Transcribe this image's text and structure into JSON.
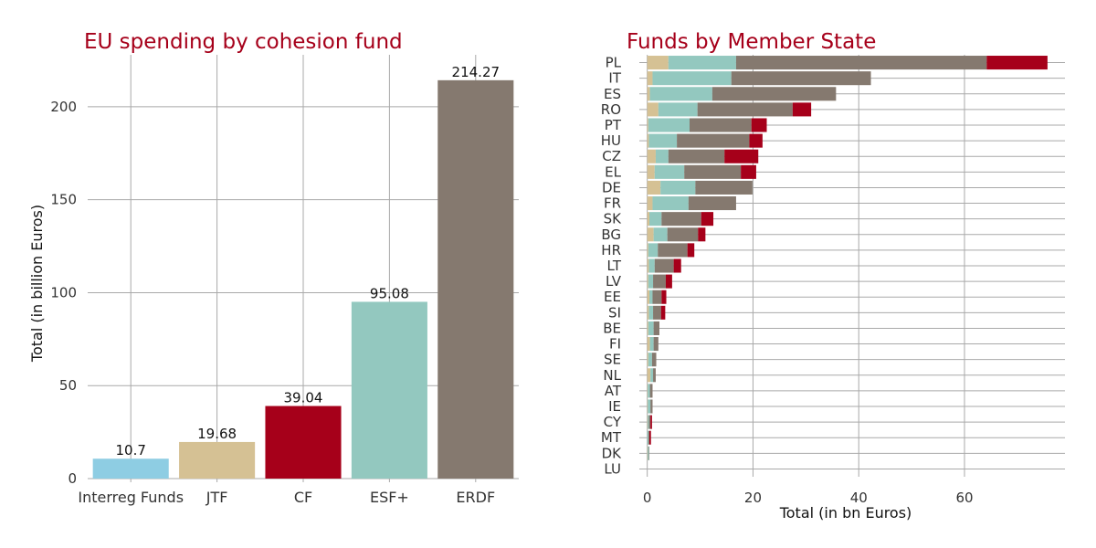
{
  "chart_data": [
    {
      "type": "bar",
      "title": "EU spending by cohesion fund",
      "xlabel": "",
      "ylabel": "Total (in billion Euros)",
      "ylim": [
        0,
        225
      ],
      "yticks": [
        0,
        50,
        100,
        150,
        200
      ],
      "categories": [
        "Interreg Funds",
        "JTF",
        "CF",
        "ESF+",
        "ERDF"
      ],
      "values": [
        10.7,
        19.68,
        39.04,
        95.08,
        214.27
      ],
      "value_labels": [
        "10.7",
        "19.68",
        "39.04",
        "95.08",
        "214.27"
      ],
      "colors": [
        "#8ecde3",
        "#d5c194",
        "#a6001a",
        "#93c8bf",
        "#85796f"
      ]
    },
    {
      "type": "bar",
      "orientation": "horizontal",
      "stacked": true,
      "title": "Funds by Member State",
      "xlabel": "Total (in bn Euros)",
      "ylabel": "",
      "xlim": [
        -1.5,
        79
      ],
      "xticks": [
        0,
        20,
        40,
        60
      ],
      "categories": [
        "PL",
        "IT",
        "ES",
        "RO",
        "PT",
        "HU",
        "CZ",
        "EL",
        "DE",
        "FR",
        "SK",
        "BG",
        "HR",
        "LT",
        "LV",
        "EE",
        "SI",
        "BE",
        "FI",
        "SE",
        "NL",
        "AT",
        "IE",
        "CY",
        "MT",
        "DK",
        "LU"
      ],
      "series": [
        {
          "name": "JTF",
          "color": "#d5c194",
          "values": [
            4.0,
            1.0,
            0.5,
            2.1,
            0.2,
            0.3,
            1.6,
            1.4,
            2.5,
            1.0,
            0.4,
            1.2,
            0.2,
            0.3,
            0.2,
            0.4,
            0.3,
            0.2,
            0.5,
            0.2,
            0.6,
            0.1,
            0.1,
            0.1,
            0.0,
            0.1,
            0.0
          ]
        },
        {
          "name": "ESF+",
          "color": "#93c8bf",
          "values": [
            12.8,
            14.9,
            11.8,
            7.4,
            7.8,
            5.3,
            2.4,
            5.6,
            6.6,
            6.8,
            2.3,
            2.6,
            1.8,
            1.1,
            0.9,
            0.6,
            0.8,
            1.0,
            0.7,
            0.7,
            0.5,
            0.4,
            0.5,
            0.2,
            0.2,
            0.2,
            0.0
          ]
        },
        {
          "name": "ERDF",
          "color": "#85796f",
          "values": [
            47.4,
            26.4,
            23.4,
            18.0,
            11.7,
            13.7,
            10.6,
            10.7,
            10.8,
            9.0,
            7.5,
            5.8,
            5.6,
            3.6,
            2.4,
            1.7,
            1.5,
            1.1,
            0.9,
            0.8,
            0.5,
            0.5,
            0.4,
            0.3,
            0.2,
            0.1,
            0.0
          ]
        },
        {
          "name": "CF",
          "color": "#a6001a",
          "values": [
            11.5,
            0.0,
            0.0,
            3.5,
            2.9,
            2.5,
            6.4,
            2.9,
            0.0,
            0.0,
            2.3,
            1.4,
            1.3,
            1.4,
            1.2,
            0.9,
            0.8,
            0.0,
            0.0,
            0.0,
            0.0,
            0.0,
            0.0,
            0.3,
            0.3,
            0.0,
            0.0
          ]
        }
      ]
    }
  ]
}
